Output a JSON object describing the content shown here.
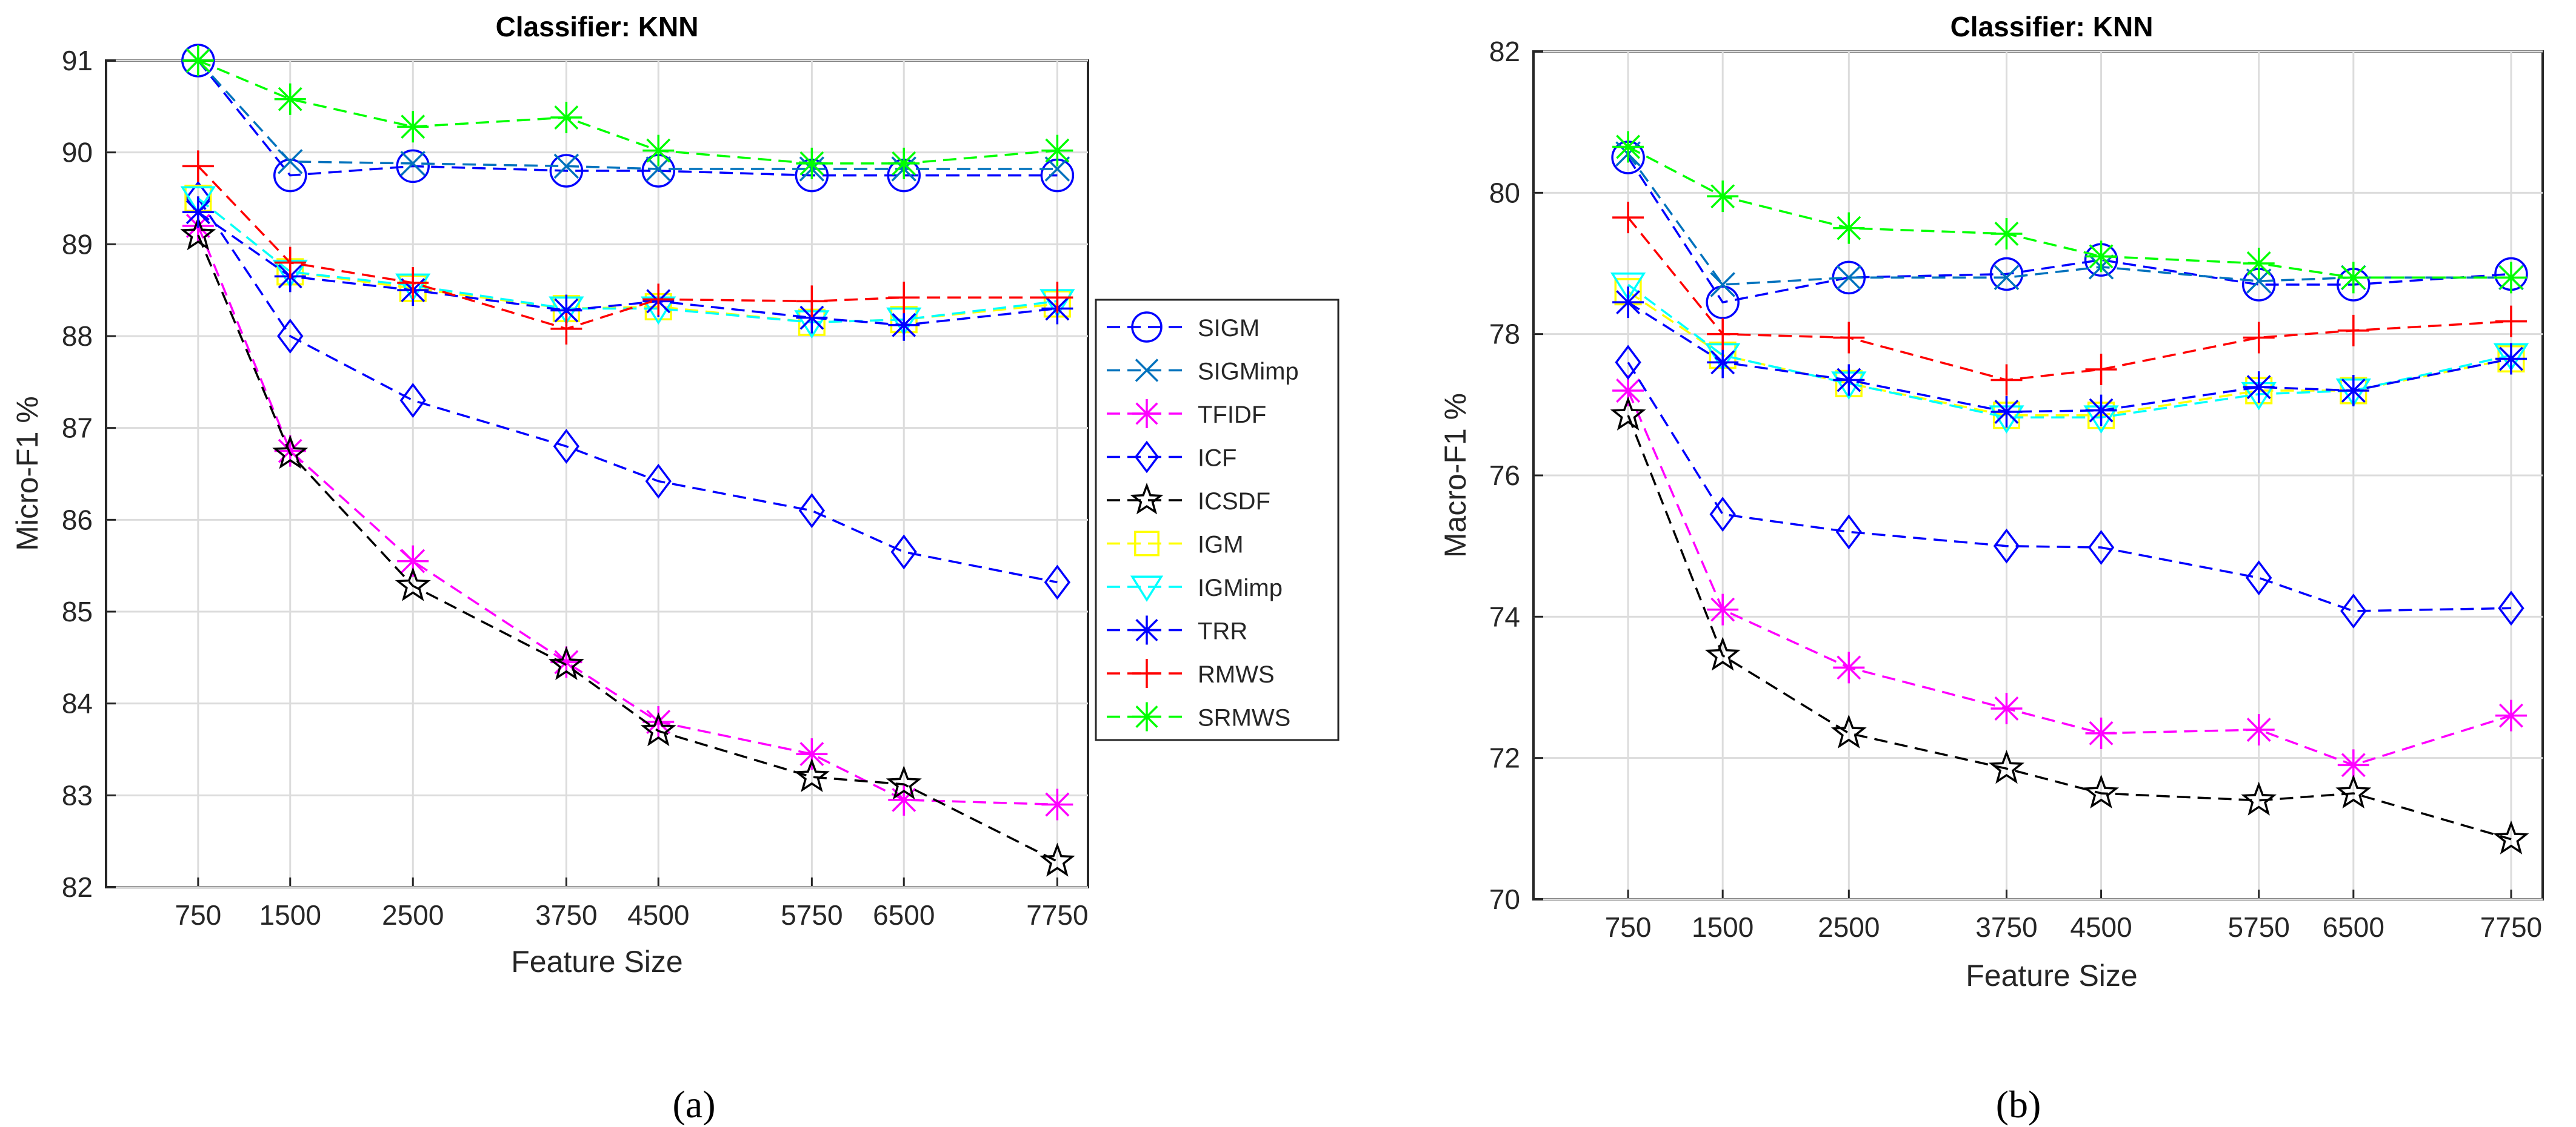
{
  "series_style": [
    {
      "name": "SIGM",
      "color": "#0000ff",
      "marker": "circle",
      "dash": "dashed"
    },
    {
      "name": "SIGMimp",
      "color": "#0072bd",
      "marker": "x",
      "dash": "dashed"
    },
    {
      "name": "TFIDF",
      "color": "#ff00ff",
      "marker": "star",
      "dash": "dashed"
    },
    {
      "name": "ICF",
      "color": "#0000ff",
      "marker": "diamond",
      "dash": "dashed"
    },
    {
      "name": "ICSDF",
      "color": "#000000",
      "marker": "pentagram",
      "dash": "dashed"
    },
    {
      "name": "IGM",
      "color": "#ffff00",
      "marker": "square",
      "dash": "dashed"
    },
    {
      "name": "IGMimp",
      "color": "#00ffff",
      "marker": "triangle-down",
      "dash": "dashed"
    },
    {
      "name": "TRR",
      "color": "#0000ff",
      "marker": "star",
      "dash": "dashed"
    },
    {
      "name": "RMWS",
      "color": "#ff0000",
      "marker": "plus",
      "dash": "dashed"
    },
    {
      "name": "SRMWS",
      "color": "#00ff00",
      "marker": "star",
      "dash": "dashed"
    }
  ],
  "chart_data": [
    {
      "type": "line",
      "panel_label": "(a)",
      "title": "Classifier: KNN",
      "xlabel": "Feature Size",
      "ylabel": "Micro-F1 %",
      "x": [
        750,
        1500,
        2500,
        3750,
        4500,
        5750,
        6500,
        7750
      ],
      "x_ticks": [
        "750",
        "1500",
        "2500",
        "3750",
        "4500",
        "5750",
        "6500",
        "7750"
      ],
      "xlim": [
        0,
        8000
      ],
      "ylim": [
        82,
        91
      ],
      "y_ticks": [
        "82",
        "83",
        "84",
        "85",
        "86",
        "87",
        "88",
        "89",
        "90",
        "91"
      ],
      "grid": true,
      "legend_position": "outside-right",
      "series": [
        {
          "name": "SIGM",
          "values": [
            91.0,
            89.75,
            89.85,
            89.8,
            89.8,
            89.75,
            89.75,
            89.75
          ]
        },
        {
          "name": "SIGMimp",
          "values": [
            91.0,
            89.9,
            89.88,
            89.85,
            89.82,
            89.82,
            89.82,
            89.82
          ]
        },
        {
          "name": "TFIDF",
          "values": [
            89.2,
            86.75,
            85.55,
            84.45,
            83.8,
            83.45,
            82.95,
            82.9
          ]
        },
        {
          "name": "ICF",
          "values": [
            89.5,
            88.0,
            87.3,
            86.8,
            86.42,
            86.1,
            85.65,
            85.32
          ]
        },
        {
          "name": "ICSDF",
          "values": [
            89.1,
            86.72,
            85.28,
            84.42,
            83.7,
            83.2,
            83.12,
            82.28
          ]
        },
        {
          "name": "IGM",
          "values": [
            89.5,
            88.7,
            88.52,
            88.3,
            88.32,
            88.15,
            88.18,
            88.35
          ]
        },
        {
          "name": "IGMimp",
          "values": [
            89.5,
            88.7,
            88.55,
            88.3,
            88.3,
            88.15,
            88.18,
            88.38
          ]
        },
        {
          "name": "TRR",
          "values": [
            89.35,
            88.65,
            88.5,
            88.28,
            88.38,
            88.2,
            88.12,
            88.3
          ]
        },
        {
          "name": "RMWS",
          "values": [
            89.85,
            88.8,
            88.58,
            88.08,
            88.4,
            88.38,
            88.42,
            88.42
          ]
        },
        {
          "name": "SRMWS",
          "values": [
            91.0,
            90.58,
            90.28,
            90.38,
            90.02,
            89.88,
            89.88,
            90.02
          ]
        }
      ]
    },
    {
      "type": "line",
      "panel_label": "(b)",
      "title": "Classifier: KNN",
      "xlabel": "Feature Size",
      "ylabel": "Macro-F1 %",
      "x": [
        750,
        1500,
        2500,
        3750,
        4500,
        5750,
        6500,
        7750
      ],
      "x_ticks": [
        "750",
        "1500",
        "2500",
        "3750",
        "4500",
        "5750",
        "6500",
        "7750"
      ],
      "xlim": [
        0,
        8000
      ],
      "ylim": [
        70,
        82
      ],
      "y_ticks": [
        "70",
        "72",
        "74",
        "76",
        "78",
        "80",
        "82"
      ],
      "grid": true,
      "series": [
        {
          "name": "SIGM",
          "values": [
            80.5,
            78.45,
            78.8,
            78.85,
            79.05,
            78.7,
            78.7,
            78.85
          ]
        },
        {
          "name": "SIGMimp",
          "values": [
            80.55,
            78.7,
            78.8,
            78.8,
            78.95,
            78.75,
            78.8,
            78.8
          ]
        },
        {
          "name": "TFIDF",
          "values": [
            77.2,
            74.1,
            73.28,
            72.7,
            72.35,
            72.4,
            71.9,
            72.6
          ]
        },
        {
          "name": "ICF",
          "values": [
            77.6,
            75.45,
            75.2,
            75.0,
            74.98,
            74.55,
            74.08,
            74.12
          ]
        },
        {
          "name": "ICSDF",
          "values": [
            76.85,
            73.45,
            72.35,
            71.85,
            71.5,
            71.4,
            71.5,
            70.85
          ]
        },
        {
          "name": "IGM",
          "values": [
            78.6,
            77.7,
            77.3,
            76.85,
            76.85,
            77.2,
            77.2,
            77.65
          ]
        },
        {
          "name": "IGMimp",
          "values": [
            78.7,
            77.7,
            77.3,
            76.82,
            76.82,
            77.15,
            77.2,
            77.7
          ]
        },
        {
          "name": "TRR",
          "values": [
            78.45,
            77.6,
            77.35,
            76.9,
            76.92,
            77.25,
            77.2,
            77.65
          ]
        },
        {
          "name": "RMWS",
          "values": [
            79.65,
            78.0,
            77.95,
            77.35,
            77.5,
            77.95,
            78.05,
            78.18
          ]
        },
        {
          "name": "SRMWS",
          "values": [
            80.65,
            79.95,
            79.5,
            79.42,
            79.1,
            79.0,
            78.8,
            78.8
          ]
        }
      ]
    }
  ]
}
